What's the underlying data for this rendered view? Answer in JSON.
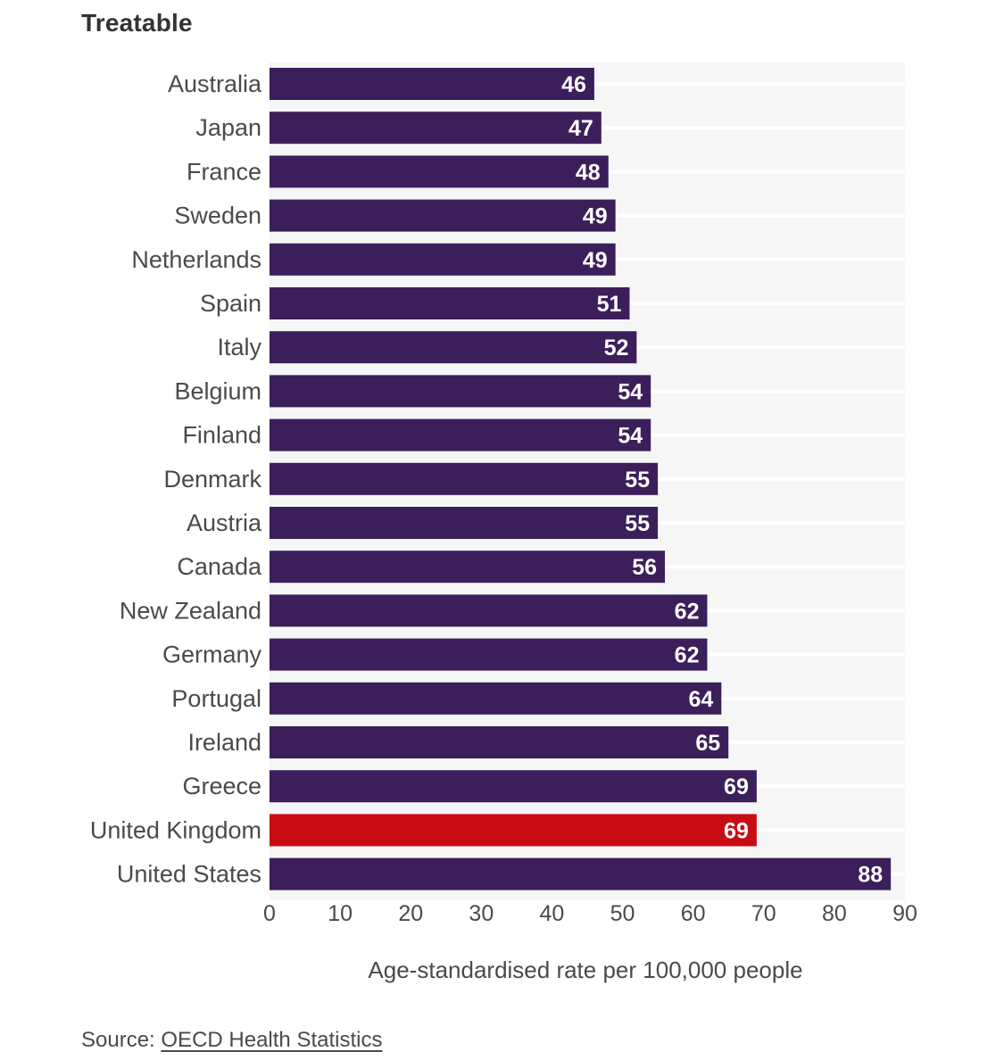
{
  "chart_data": {
    "type": "bar",
    "orientation": "horizontal",
    "title": "Treatable",
    "xlabel": "Age-standardised rate per 100,000 people",
    "ylabel": "",
    "xlim": [
      0,
      90
    ],
    "xticks": [
      0,
      10,
      20,
      30,
      40,
      50,
      60,
      70,
      80,
      90
    ],
    "grid": true,
    "categories": [
      "Australia",
      "Japan",
      "France",
      "Sweden",
      "Netherlands",
      "Spain",
      "Italy",
      "Belgium",
      "Finland",
      "Denmark",
      "Austria",
      "Canada",
      "New Zealand",
      "Germany",
      "Portugal",
      "Ireland",
      "Greece",
      "United Kingdom",
      "United States"
    ],
    "values": [
      46,
      47,
      48,
      49,
      49,
      51,
      52,
      54,
      54,
      55,
      55,
      56,
      62,
      62,
      64,
      65,
      69,
      69,
      88
    ],
    "highlight": "United Kingdom",
    "colors": {
      "default": "#3b1f5a",
      "highlight": "#c70c14",
      "band": "#f6f6f6",
      "value_text": "#ffffff"
    }
  },
  "source": {
    "prefix": "Source: ",
    "link_text": "OECD Health Statistics"
  }
}
